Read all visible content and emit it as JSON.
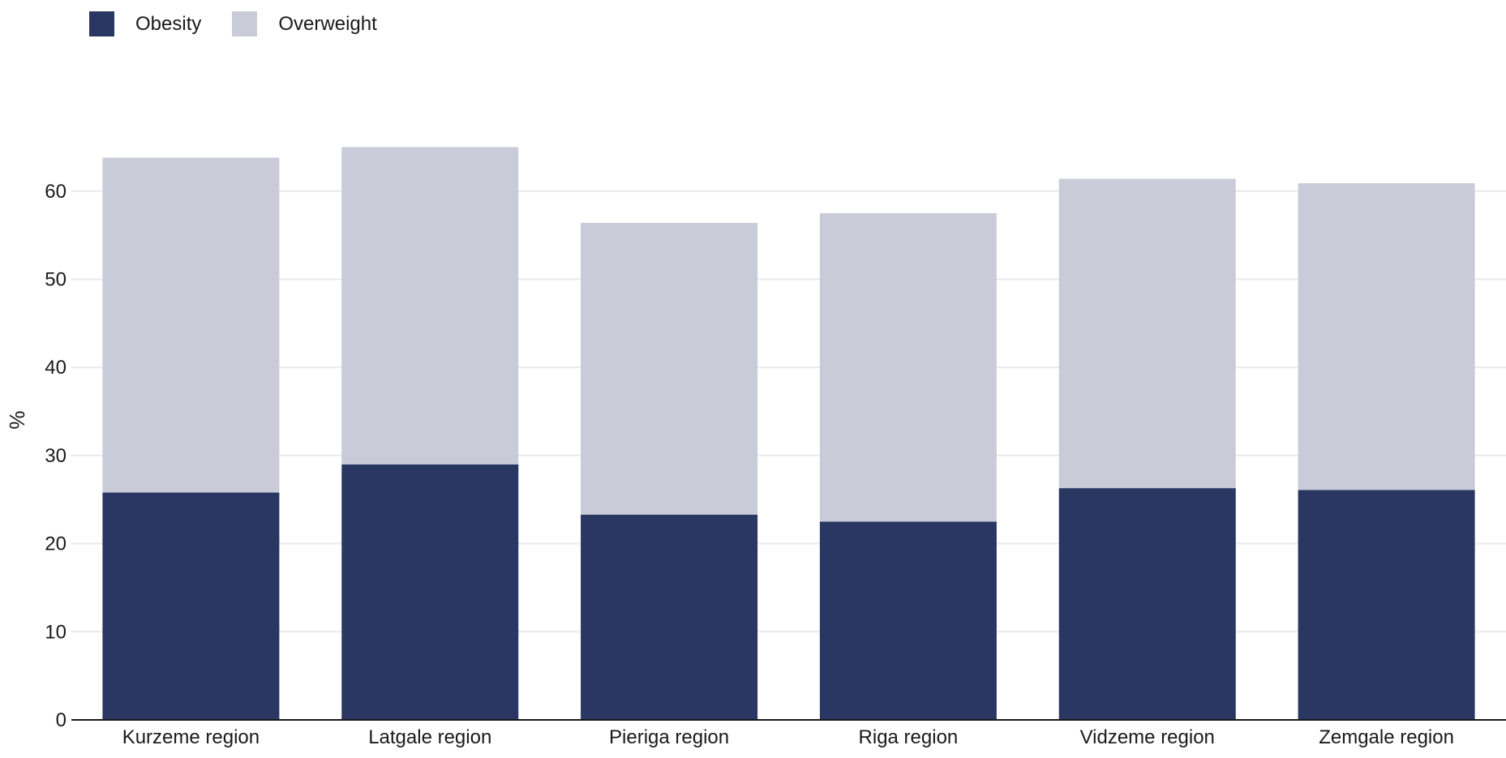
{
  "chart_data": {
    "type": "bar",
    "stacked": true,
    "categories": [
      "Kurzeme region",
      "Latgale region",
      "Pieriga region",
      "Riga region",
      "Vidzeme region",
      "Zemgale region"
    ],
    "series": [
      {
        "name": "Obesity",
        "color": "#2b3763",
        "values": [
          25.8,
          29.0,
          23.3,
          22.5,
          26.3,
          26.1
        ]
      },
      {
        "name": "Overweight",
        "color": "#cacbd8",
        "values": [
          38.0,
          36.0,
          33.1,
          35.0,
          35.1,
          34.8
        ]
      }
    ],
    "title": "",
    "xlabel": "",
    "ylabel": "%",
    "ylim": [
      0,
      65
    ],
    "yticks": [
      0,
      10,
      20,
      30,
      40,
      50,
      60
    ],
    "grid": true,
    "legend_position": "top-left"
  }
}
